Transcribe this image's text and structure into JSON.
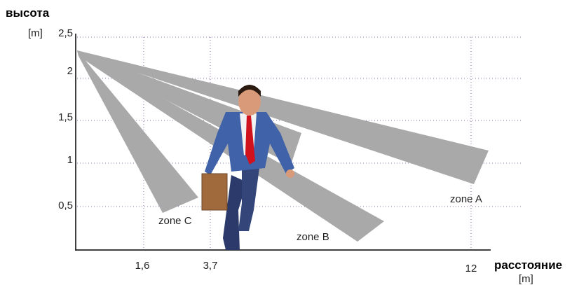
{
  "axes": {
    "y_title": "высота",
    "y_unit": "[m]",
    "y_ticks": [
      "2,5",
      "2",
      "1,5",
      "1",
      "0,5"
    ],
    "x_ticks": [
      "1,6",
      "3,7",
      "12"
    ],
    "x_title": "расстояние",
    "x_unit": "[m]"
  },
  "zones": [
    "zone A",
    "zone B",
    "zone C"
  ]
}
